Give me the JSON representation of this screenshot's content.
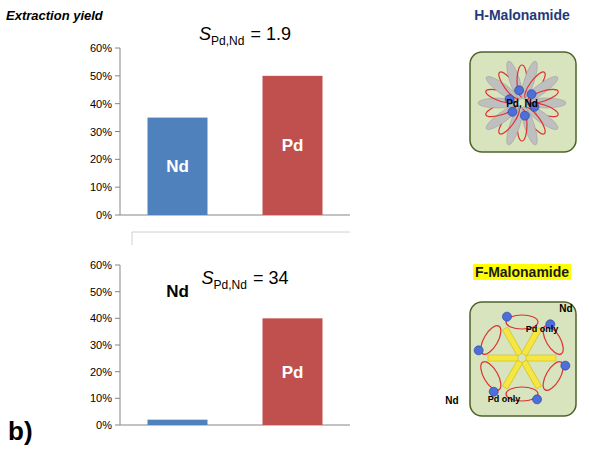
{
  "chart_data": [
    {
      "type": "bar",
      "ylabel": "Extraction yield",
      "categories": [
        "Nd",
        "Pd"
      ],
      "values": [
        35,
        50
      ],
      "colors": [
        "#4f81bd",
        "#c0504d"
      ],
      "ylim": [
        0,
        60
      ],
      "yticks": [
        {
          "value": 0,
          "label": "0%"
        },
        {
          "value": 10,
          "label": "10%"
        },
        {
          "value": 20,
          "label": "20%"
        },
        {
          "value": 30,
          "label": "30%"
        },
        {
          "value": 40,
          "label": "40%"
        },
        {
          "value": 50,
          "label": "50%"
        },
        {
          "value": 60,
          "label": "60%"
        }
      ],
      "grid": false,
      "tick_labels": "y",
      "annotation": {
        "symbol": "S",
        "subscript": "Pd,Nd",
        "text": "= 1.9"
      }
    },
    {
      "type": "bar",
      "categories": [
        "Nd",
        "Pd"
      ],
      "values": [
        2,
        40
      ],
      "colors": [
        "#4f81bd",
        "#c0504d"
      ],
      "ylim": [
        0,
        60
      ],
      "yticks": [
        {
          "value": 0,
          "label": "0%"
        },
        {
          "value": 10,
          "label": "10%"
        },
        {
          "value": 20,
          "label": "20%"
        },
        {
          "value": 30,
          "label": "30%"
        },
        {
          "value": 40,
          "label": "40%"
        },
        {
          "value": 50,
          "label": "50%"
        },
        {
          "value": 60,
          "label": "60%"
        }
      ],
      "grid": false,
      "tick_labels": "y",
      "annotation": {
        "symbol": "S",
        "subscript": "Pd,Nd",
        "text": "= 34"
      }
    }
  ],
  "panel_label": "b)",
  "diagrams": [
    {
      "title": "H-Malonamide",
      "labels": [
        "Pd, Nd"
      ]
    },
    {
      "title": "F-Malonamide",
      "labels": [
        "Pd only",
        "Pd only"
      ],
      "outside_labels": [
        "Nd",
        "Nd"
      ]
    }
  ]
}
